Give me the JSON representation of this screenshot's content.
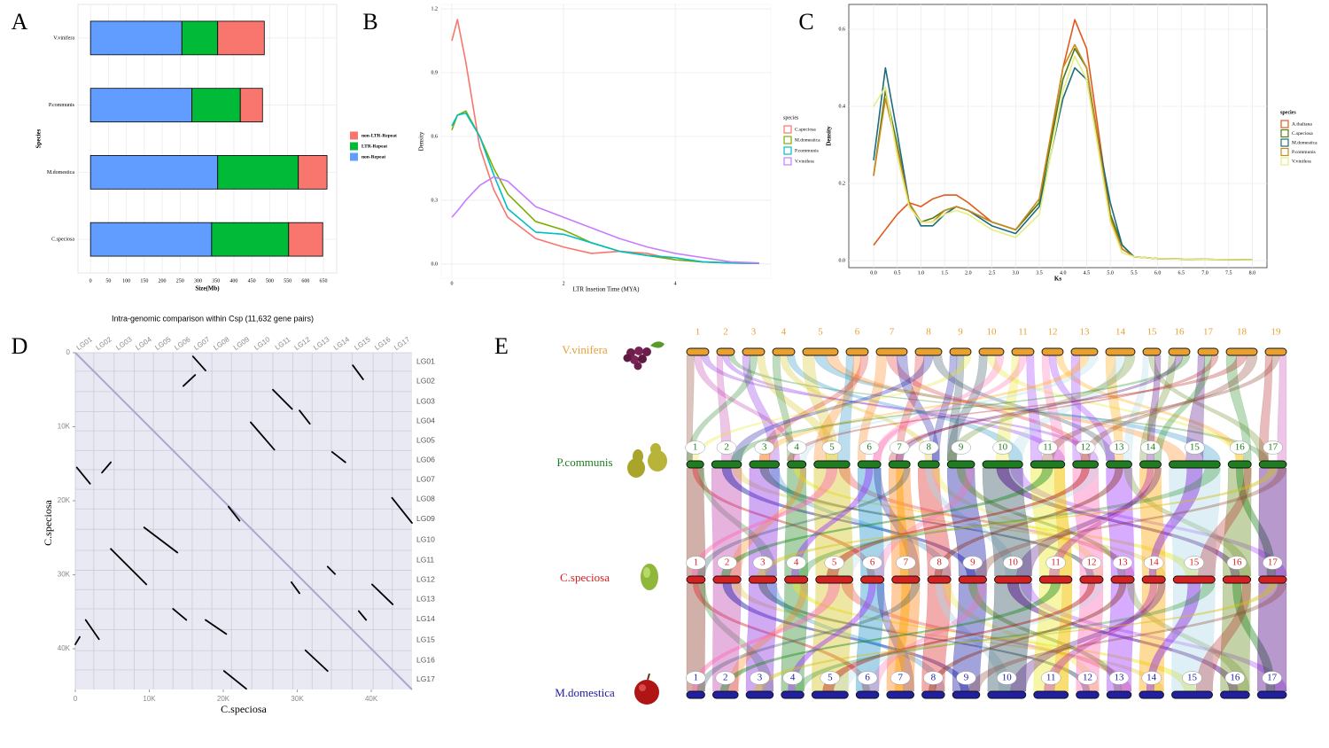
{
  "chart_data": [
    {
      "panel": "A",
      "type": "bar",
      "orientation": "horizontal",
      "stacked": true,
      "categories": [
        "C.speciosa",
        "M.domestica",
        "P.communis",
        "V.vinifera"
      ],
      "series": [
        {
          "name": "non-Repeat",
          "color": "#619cff",
          "values": [
            338,
            355,
            283,
            255
          ]
        },
        {
          "name": "LTR-Repeat",
          "color": "#00ba38",
          "values": [
            215,
            225,
            135,
            100
          ]
        },
        {
          "name": "non-LTR-Repeat",
          "color": "#f8766d",
          "values": [
            95,
            80,
            62,
            130
          ]
        }
      ],
      "xlim": [
        -35,
        687
      ],
      "xticks": [
        0,
        50,
        100,
        150,
        200,
        250,
        300,
        350,
        400,
        450,
        500,
        550,
        600,
        650
      ],
      "xlabel": "Size(Mb)",
      "ylabel": "Species",
      "grid": true,
      "legend": "right"
    },
    {
      "panel": "B",
      "type": "line",
      "x": [
        0,
        0.1,
        0.25,
        0.5,
        0.75,
        1,
        1.5,
        2,
        2.5,
        3,
        3.5,
        4,
        4.5,
        5,
        5.5
      ],
      "series": [
        {
          "name": "C.speciosa",
          "color": "#f8766d",
          "values": [
            1.05,
            1.15,
            0.95,
            0.55,
            0.35,
            0.22,
            0.12,
            0.08,
            0.05,
            0.06,
            0.05,
            0.02,
            0.01,
            0.005,
            0.003
          ]
        },
        {
          "name": "M.domestica",
          "color": "#7cae00",
          "values": [
            0.63,
            0.7,
            0.72,
            0.6,
            0.45,
            0.33,
            0.2,
            0.16,
            0.1,
            0.06,
            0.04,
            0.02,
            0.01,
            0.005,
            0.003
          ]
        },
        {
          "name": "P.communis",
          "color": "#00bfc4",
          "values": [
            0.65,
            0.7,
            0.71,
            0.6,
            0.42,
            0.26,
            0.15,
            0.14,
            0.1,
            0.06,
            0.04,
            0.03,
            0.01,
            0.005,
            0.003
          ]
        },
        {
          "name": "V.vinifera",
          "color": "#c77cff",
          "values": [
            0.22,
            0.25,
            0.3,
            0.37,
            0.41,
            0.39,
            0.27,
            0.22,
            0.17,
            0.12,
            0.08,
            0.05,
            0.03,
            0.01,
            0.005
          ]
        }
      ],
      "xlim": [
        -0.19,
        5.71
      ],
      "ylim": [
        -0.067,
        1.221
      ],
      "xticks": [
        0,
        2,
        4
      ],
      "yticks": [
        {
          "value": 0,
          "label": "0.0"
        },
        0.3,
        0.6,
        0.9,
        1.2
      ],
      "xlabel": "LTR Insetion Time (MYA)",
      "ylabel": "Density",
      "legend_title": "species",
      "grid": true,
      "legend": "right"
    },
    {
      "panel": "C",
      "type": "line",
      "x": [
        0,
        0.25,
        0.5,
        0.75,
        1,
        1.25,
        1.5,
        1.75,
        2,
        2.5,
        3,
        3.5,
        4,
        4.25,
        4.5,
        5,
        5.25,
        5.5,
        6,
        7,
        8
      ],
      "series": [
        {
          "name": "A.thaliana",
          "color": "#e0591c",
          "values": [
            0.04,
            0.08,
            0.12,
            0.15,
            0.14,
            0.16,
            0.17,
            0.17,
            0.15,
            0.1,
            0.08,
            0.15,
            0.5,
            0.625,
            0.55,
            0.12,
            0.03,
            0.01,
            0.005,
            0.003,
            0.002
          ]
        },
        {
          "name": "C.speciosa",
          "color": "#4f7a12",
          "values": [
            0.22,
            0.44,
            0.3,
            0.15,
            0.1,
            0.11,
            0.13,
            0.14,
            0.13,
            0.1,
            0.08,
            0.15,
            0.47,
            0.55,
            0.5,
            0.12,
            0.04,
            0.01,
            0.005,
            0.003,
            0.002
          ]
        },
        {
          "name": "M.domestica",
          "color": "#1d6b7d",
          "values": [
            0.26,
            0.5,
            0.33,
            0.15,
            0.09,
            0.09,
            0.12,
            0.14,
            0.13,
            0.09,
            0.07,
            0.14,
            0.42,
            0.5,
            0.47,
            0.15,
            0.04,
            0.01,
            0.005,
            0.003,
            0.002
          ]
        },
        {
          "name": "P.communis",
          "color": "#c98a1c",
          "values": [
            0.22,
            0.42,
            0.29,
            0.15,
            0.1,
            0.1,
            0.13,
            0.14,
            0.13,
            0.1,
            0.08,
            0.16,
            0.5,
            0.56,
            0.5,
            0.11,
            0.03,
            0.01,
            0.005,
            0.003,
            0.002
          ]
        },
        {
          "name": "V.vinifera",
          "color": "#e4ee80",
          "values": [
            0.4,
            0.45,
            0.27,
            0.14,
            0.1,
            0.1,
            0.12,
            0.13,
            0.12,
            0.08,
            0.06,
            0.12,
            0.44,
            0.53,
            0.47,
            0.1,
            0.02,
            0.01,
            0.005,
            0.003,
            0.002
          ]
        }
      ],
      "xlim": [
        -0.524,
        8.31
      ],
      "ylim": [
        -0.0184,
        0.6644
      ],
      "xticks": [
        {
          "value": 0,
          "label": "0.0"
        },
        0.5,
        {
          "value": 1,
          "label": "1.0"
        },
        1.5,
        {
          "value": 2,
          "label": "2.0"
        },
        2.5,
        {
          "value": 3,
          "label": "3.0"
        },
        3.5,
        {
          "value": 4,
          "label": "4.0"
        },
        4.5,
        {
          "value": 5,
          "label": "5.0"
        },
        5.5,
        {
          "value": 6,
          "label": "6.0"
        },
        6.5,
        {
          "value": 7,
          "label": "7.0"
        },
        7.5,
        {
          "value": 8,
          "label": "8.0"
        }
      ],
      "yticks": [
        {
          "value": 0,
          "label": "0.0"
        },
        0.2,
        0.4,
        0.6
      ],
      "xlabel": "Ks",
      "ylabel": "Density",
      "legend_title": "species",
      "grid": true,
      "legend": "right"
    },
    {
      "panel": "D",
      "type": "dotplot",
      "title": "Intra-genomic comparison within Csp (11,632 gene pairs)",
      "xlabel": "C.speciosa",
      "ylabel": "C.speciosa",
      "xlim": [
        0,
        45500
      ],
      "ylim": [
        0,
        45500
      ],
      "y_reversed": true,
      "xticks": [
        0,
        {
          "value": 10000,
          "label": "10K"
        },
        {
          "value": 20000,
          "label": "20K"
        },
        {
          "value": 30000,
          "label": "30K"
        },
        {
          "value": 40000,
          "label": "40K"
        }
      ],
      "yticks": [
        0,
        {
          "value": 10000,
          "label": "10K"
        },
        {
          "value": 20000,
          "label": "20K"
        },
        {
          "value": 30000,
          "label": "30K"
        },
        {
          "value": 40000,
          "label": "40K"
        }
      ],
      "chromosomes": [
        "LG01",
        "LG02",
        "LG03",
        "LG04",
        "LG05",
        "LG06",
        "LG07",
        "LG08",
        "LG09",
        "LG10",
        "LG11",
        "LG12",
        "LG13",
        "LG14",
        "LG15",
        "LG16",
        "LG17"
      ],
      "chromosome_starts": [
        0,
        2500,
        5250,
        7950,
        10550,
        13200,
        15800,
        18450,
        21100,
        23850,
        26700,
        29400,
        32000,
        34600,
        37400,
        40250,
        42850
      ],
      "segments": [
        [
          15900,
          500,
          17600,
          2400
        ],
        [
          37500,
          1700,
          38900,
          3600
        ],
        [
          14600,
          4500,
          16200,
          3000
        ],
        [
          26700,
          5000,
          29300,
          7600
        ],
        [
          30300,
          7800,
          31700,
          9600
        ],
        [
          23700,
          9400,
          26900,
          13100
        ],
        [
          200,
          15500,
          2000,
          17700
        ],
        [
          3600,
          16200,
          4800,
          14800
        ],
        [
          34700,
          13400,
          36500,
          14800
        ],
        [
          42800,
          19600,
          45500,
          23000
        ],
        [
          9300,
          23600,
          13800,
          27000
        ],
        [
          4800,
          26500,
          9600,
          31300
        ],
        [
          34100,
          28900,
          35100,
          29900
        ],
        [
          40100,
          31300,
          42900,
          34000
        ],
        [
          13200,
          34600,
          15000,
          36100
        ],
        [
          17600,
          36100,
          20400,
          38000
        ],
        [
          1400,
          36100,
          3200,
          38700
        ],
        [
          0,
          39400,
          600,
          38400
        ],
        [
          31100,
          40200,
          34100,
          43000
        ],
        [
          20100,
          43000,
          23100,
          45400
        ],
        [
          29200,
          31000,
          30300,
          32500
        ],
        [
          20700,
          20800,
          22200,
          22700
        ],
        [
          38300,
          34900,
          39300,
          36100
        ]
      ]
    },
    {
      "panel": "E",
      "type": "synteny",
      "genomes": [
        {
          "name": "V.vinifera",
          "color": "#e8a030",
          "chromosomes": [
            "1",
            "2",
            "3",
            "4",
            "5",
            "6",
            "7",
            "8",
            "9",
            "10",
            "11",
            "12",
            "13",
            "14",
            "15",
            "16",
            "17",
            "18",
            "19"
          ]
        },
        {
          "name": "P.communis",
          "color": "#1e7d1e",
          "chromosomes": [
            "1",
            "2",
            "3",
            "4",
            "5",
            "6",
            "7",
            "8",
            "9",
            "10",
            "11",
            "12",
            "13",
            "14",
            "15",
            "16",
            "17"
          ]
        },
        {
          "name": "C.speciosa",
          "color": "#d62020",
          "chromosomes": [
            "1",
            "2",
            "3",
            "4",
            "5",
            "6",
            "7",
            "8",
            "9",
            "10",
            "11",
            "12",
            "13",
            "14",
            "15",
            "16",
            "17"
          ]
        },
        {
          "name": "M.domestica",
          "color": "#2020a0",
          "chromosomes": [
            "1",
            "2",
            "3",
            "4",
            "5",
            "6",
            "7",
            "8",
            "9",
            "10",
            "11",
            "12",
            "13",
            "14",
            "15",
            "16",
            "17"
          ]
        }
      ],
      "link_colors": [
        "#8b3a2a",
        "#c040b0",
        "#8a2be2",
        "#2e8b2e",
        "#d4c21a",
        "#1e90c8",
        "#ff7f0e",
        "#e03030",
        "#1a1aa8",
        "#2f4f5f",
        "#e8e820",
        "#ff69b4",
        "#9b30ff",
        "#ffa500",
        "#add8e6",
        "#6b8e23",
        "#4b0082",
        "#228b22",
        "#b22222"
      ]
    }
  ]
}
